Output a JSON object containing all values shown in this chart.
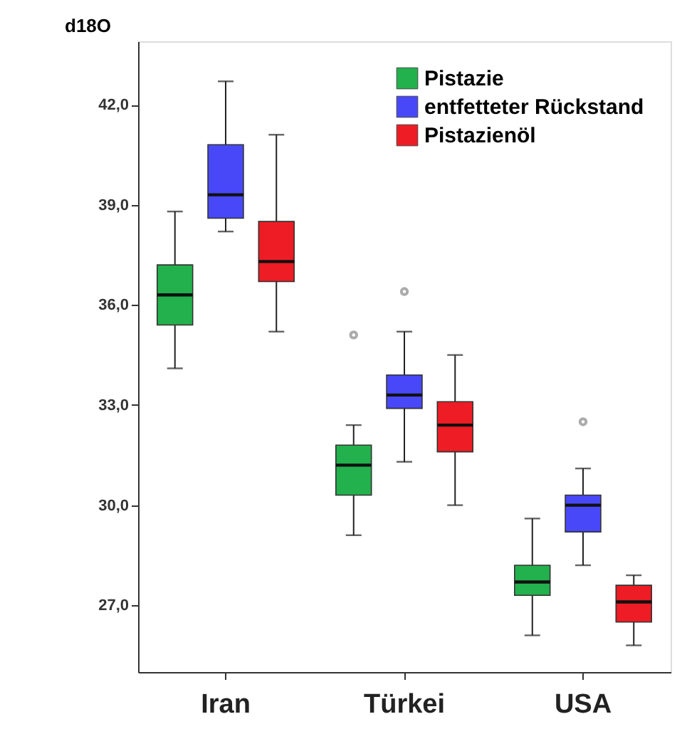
{
  "chart_data": {
    "type": "box",
    "ylabel": "d18O",
    "categories": [
      "Iran",
      "Türkei",
      "USA"
    ],
    "ylim": [
      25.0,
      43.9
    ],
    "yticks": [
      {
        "value": 27,
        "label": "27,0"
      },
      {
        "value": 30,
        "label": "30,0"
      },
      {
        "value": 33,
        "label": "33,0"
      },
      {
        "value": 36,
        "label": "36,0"
      },
      {
        "value": 39,
        "label": "39,0"
      },
      {
        "value": 42,
        "label": "42,0"
      }
    ],
    "grid": false,
    "legend": "top right",
    "series": [
      {
        "name": "Pistazie",
        "color": "#22b14c",
        "boxes": [
          {
            "low": 34.1,
            "q1": 35.4,
            "median": 36.3,
            "q3": 37.2,
            "high": 38.8
          },
          {
            "low": 29.1,
            "q1": 30.3,
            "median": 31.2,
            "q3": 31.8,
            "high": 32.4,
            "outliers": [
              35.1
            ]
          },
          {
            "low": 26.1,
            "q1": 27.3,
            "median": 27.7,
            "q3": 28.2,
            "high": 29.6
          }
        ]
      },
      {
        "name": "entfetteter Rückstand",
        "color": "#4848f8",
        "boxes": [
          {
            "low": 38.2,
            "q1": 38.6,
            "median": 39.3,
            "q3": 40.8,
            "high": 42.7
          },
          {
            "low": 31.3,
            "q1": 32.9,
            "median": 33.3,
            "q3": 33.9,
            "high": 35.2,
            "outliers": [
              36.4
            ]
          },
          {
            "low": 28.2,
            "q1": 29.2,
            "median": 30.0,
            "q3": 30.3,
            "high": 31.1,
            "outliers": [
              32.5
            ]
          }
        ]
      },
      {
        "name": "Pistazienöl",
        "color": "#ee1c24",
        "boxes": [
          {
            "low": 35.2,
            "q1": 36.7,
            "median": 37.3,
            "q3": 38.5,
            "high": 41.1
          },
          {
            "low": 30.0,
            "q1": 31.6,
            "median": 32.4,
            "q3": 33.1,
            "high": 34.5
          },
          {
            "low": 25.8,
            "q1": 26.5,
            "median": 27.1,
            "q3": 27.6,
            "high": 27.9
          }
        ]
      }
    ]
  }
}
